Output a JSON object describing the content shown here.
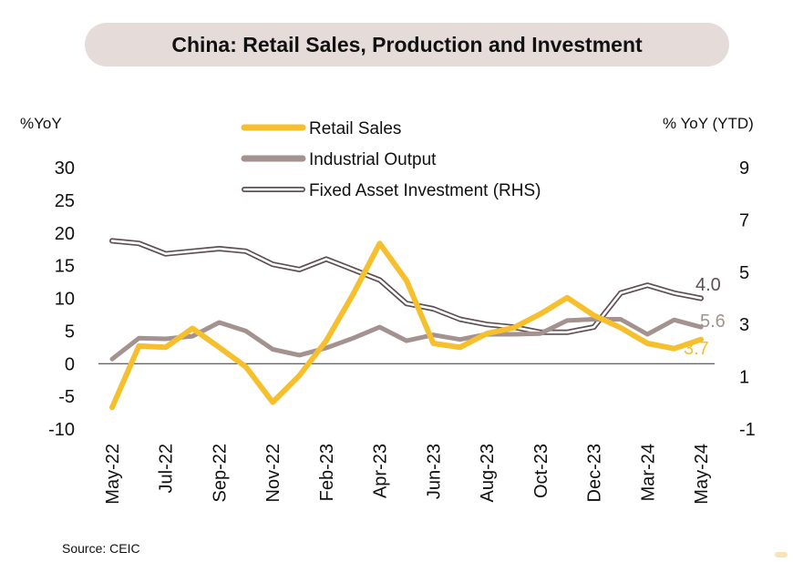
{
  "title": "China: Retail Sales, Production and Investment",
  "source": "Source: CEIC",
  "chart_data": {
    "type": "line",
    "left_axis": {
      "label": "%YoY",
      "ticks": [
        30,
        25,
        20,
        15,
        10,
        5,
        0,
        -5,
        -10
      ],
      "range": [
        -10,
        30
      ]
    },
    "right_axis": {
      "label": "% YoY (YTD)",
      "ticks": [
        9,
        7,
        5,
        3,
        1,
        -1
      ],
      "range": [
        -1,
        9
      ]
    },
    "x_tick_labels": [
      "May-22",
      "Jul-22",
      "Sep-22",
      "Nov-22",
      "Feb-23",
      "Apr-23",
      "Jun-23",
      "Aug-23",
      "Oct-23",
      "Dec-23",
      "Mar-24",
      "May-24"
    ],
    "legend": [
      {
        "name": "Retail Sales",
        "style": "thick",
        "color": "#f5bf2e"
      },
      {
        "name": "Industrial Output",
        "style": "thick",
        "color": "#a39290"
      },
      {
        "name": "Fixed Asset Investment (RHS)",
        "style": "double",
        "color": "#5e4f52"
      }
    ],
    "series": [
      {
        "name": "Retail Sales",
        "axis": "left",
        "color": "#f5bf2e",
        "points": [
          [
            0,
            -6.7
          ],
          [
            1,
            2.7
          ],
          [
            2,
            2.5
          ],
          [
            3,
            5.4
          ],
          [
            4,
            2.5
          ],
          [
            5,
            -0.5
          ],
          [
            6,
            -5.9
          ],
          [
            7,
            -1.8
          ],
          [
            8,
            3.5
          ],
          [
            9,
            10.6
          ],
          [
            10,
            18.4
          ],
          [
            11,
            12.7
          ],
          [
            12,
            3.1
          ],
          [
            13,
            2.5
          ],
          [
            14,
            4.6
          ],
          [
            15,
            5.5
          ],
          [
            16,
            7.6
          ],
          [
            17,
            10.1
          ],
          [
            18,
            7.4
          ],
          [
            19,
            5.5
          ],
          [
            20,
            3.1
          ],
          [
            21,
            2.3
          ],
          [
            22,
            3.7
          ]
        ],
        "end_label": "3.7"
      },
      {
        "name": "Industrial Output",
        "axis": "left",
        "color": "#a39290",
        "points": [
          [
            0,
            0.7
          ],
          [
            1,
            3.9
          ],
          [
            2,
            3.8
          ],
          [
            3,
            4.2
          ],
          [
            4,
            6.3
          ],
          [
            5,
            5.0
          ],
          [
            6,
            2.2
          ],
          [
            7,
            1.3
          ],
          [
            8,
            2.4
          ],
          [
            9,
            3.9
          ],
          [
            10,
            5.6
          ],
          [
            11,
            3.5
          ],
          [
            12,
            4.4
          ],
          [
            13,
            3.7
          ],
          [
            14,
            4.5
          ],
          [
            15,
            4.5
          ],
          [
            16,
            4.6
          ],
          [
            17,
            6.6
          ],
          [
            18,
            6.8
          ],
          [
            19,
            6.8
          ],
          [
            20,
            4.5
          ],
          [
            21,
            6.7
          ],
          [
            22,
            5.6
          ]
        ],
        "end_label": "5.6"
      },
      {
        "name": "Fixed Asset Investment (RHS)",
        "axis": "right",
        "color": "#5e4f52",
        "points": [
          [
            0,
            6.2
          ],
          [
            1,
            6.1
          ],
          [
            2,
            5.7
          ],
          [
            3,
            5.8
          ],
          [
            4,
            5.9
          ],
          [
            5,
            5.8
          ],
          [
            6,
            5.3
          ],
          [
            7,
            5.1
          ],
          [
            8,
            5.5
          ],
          [
            9,
            5.1
          ],
          [
            10,
            4.7
          ],
          [
            11,
            3.8
          ],
          [
            12,
            3.6
          ],
          [
            13,
            3.2
          ],
          [
            14,
            3.0
          ],
          [
            15,
            2.9
          ],
          [
            16,
            2.7
          ],
          [
            17,
            2.7
          ],
          [
            18,
            2.9
          ],
          [
            19,
            4.2
          ],
          [
            20,
            4.5
          ],
          [
            21,
            4.2
          ],
          [
            22,
            4.0
          ]
        ],
        "end_label": "4.0"
      }
    ],
    "zero_line": true,
    "grid": false
  }
}
